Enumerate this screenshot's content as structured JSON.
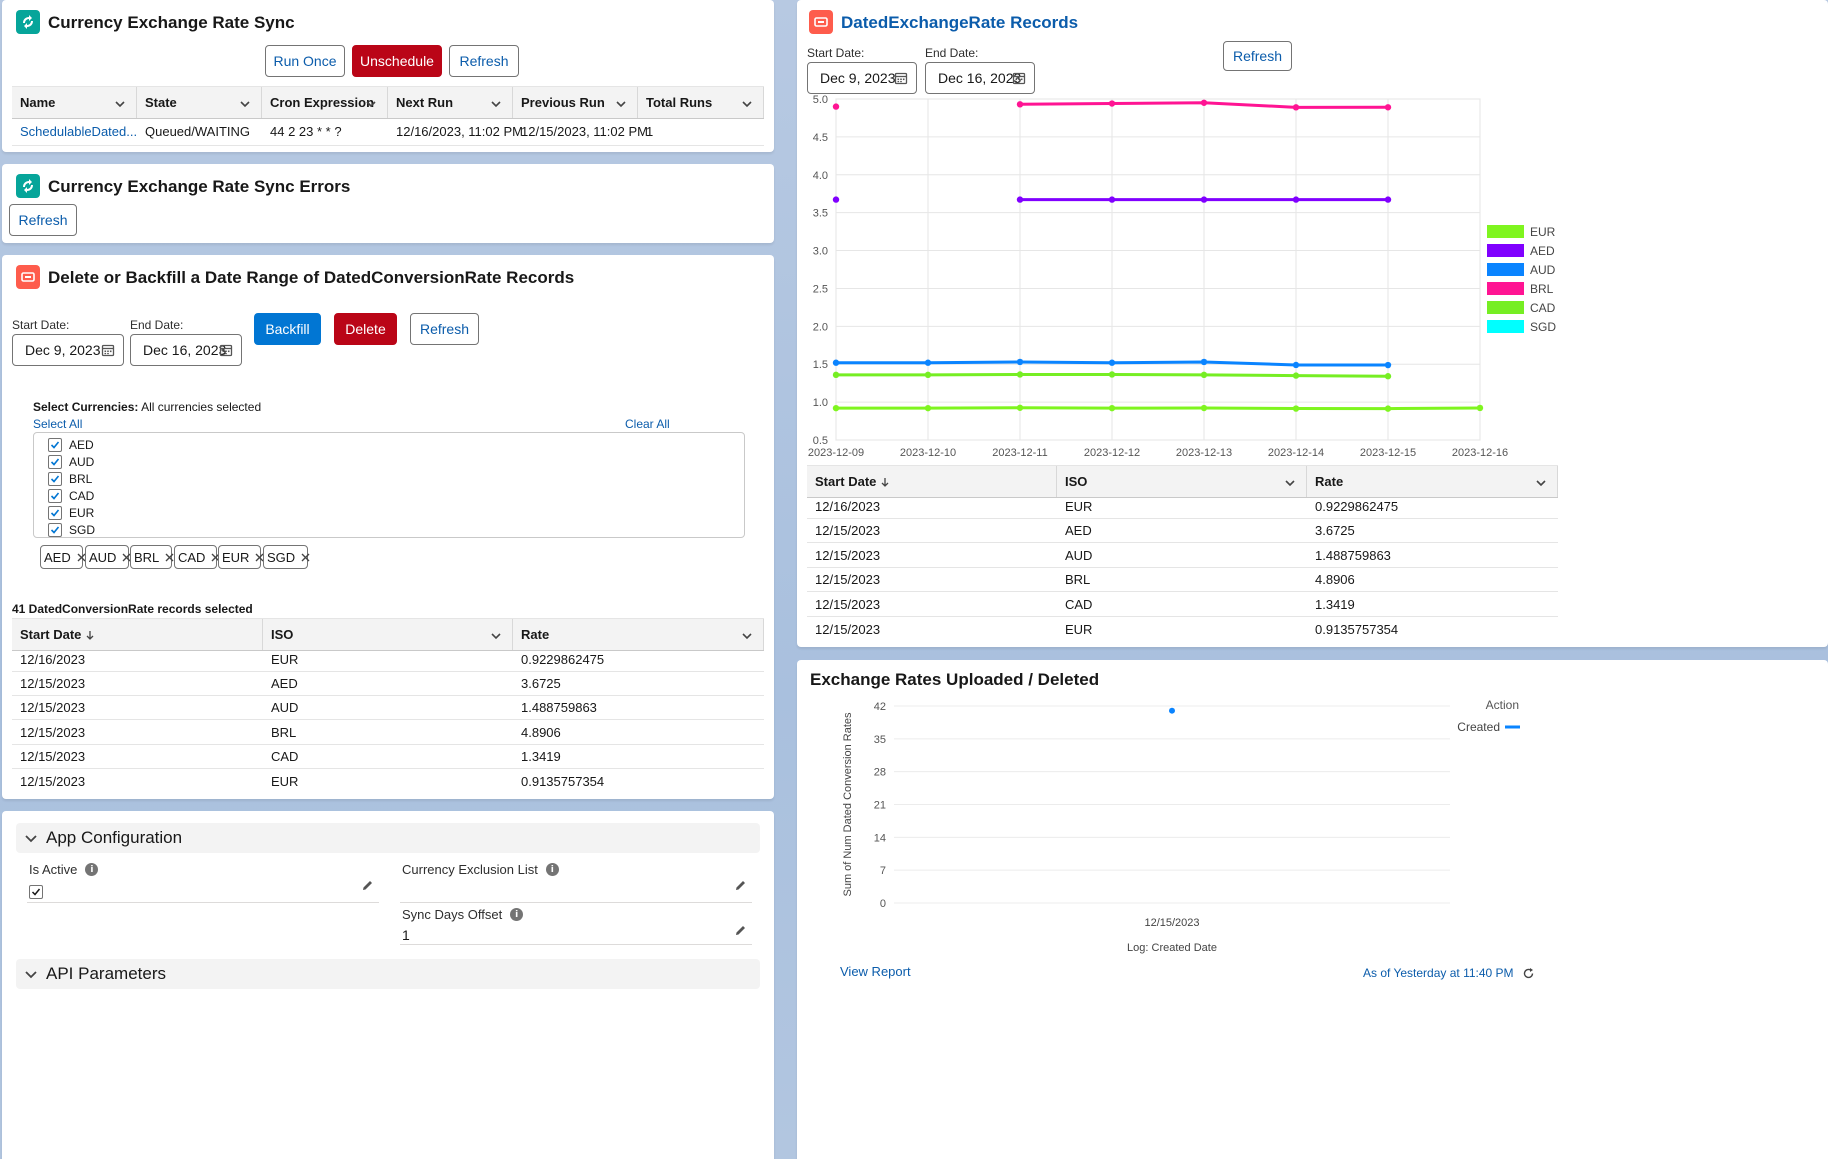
{
  "sync_card": {
    "title": "Currency Exchange Rate Sync",
    "buttons": {
      "run_once": "Run Once",
      "unschedule": "Unschedule",
      "refresh": "Refresh"
    },
    "columns": [
      "Name",
      "State",
      "Cron Expression",
      "Next Run",
      "Previous Run",
      "Total Runs"
    ],
    "rows": [
      {
        "name": "SchedulableDated...",
        "state": "Queued/WAITING",
        "cron": "44 2 23 * * ?",
        "next_run": "12/16/2023, 11:02 PM",
        "previous_run": "12/15/2023, 11:02 PM",
        "total_runs": "1"
      }
    ]
  },
  "errors_card": {
    "title": "Currency Exchange Rate Sync Errors",
    "refresh": "Refresh"
  },
  "backfill_card": {
    "title": "Delete or Backfill a Date Range of DatedConversionRate Records",
    "start_label": "Start Date:",
    "start_value": "Dec 9, 2023",
    "end_label": "End Date:",
    "end_value": "Dec 16, 2023",
    "buttons": {
      "backfill": "Backfill",
      "delete": "Delete",
      "refresh": "Refresh"
    },
    "select_label": "Select Currencies:",
    "select_status": "All currencies selected",
    "select_all": "Select All",
    "clear_all": "Clear All",
    "currencies": [
      "AED",
      "AUD",
      "BRL",
      "CAD",
      "EUR",
      "SGD"
    ],
    "pills": [
      "AED",
      "AUD",
      "BRL",
      "CAD",
      "EUR",
      "SGD"
    ],
    "records_count": "41 DatedConversionRate records selected",
    "columns": [
      "Start Date",
      "ISO",
      "Rate"
    ],
    "rows": [
      {
        "date": "12/16/2023",
        "iso": "EUR",
        "rate": "0.9229862475"
      },
      {
        "date": "12/15/2023",
        "iso": "AED",
        "rate": "3.6725"
      },
      {
        "date": "12/15/2023",
        "iso": "AUD",
        "rate": "1.488759863"
      },
      {
        "date": "12/15/2023",
        "iso": "BRL",
        "rate": "4.8906"
      },
      {
        "date": "12/15/2023",
        "iso": "CAD",
        "rate": "1.3419"
      },
      {
        "date": "12/15/2023",
        "iso": "EUR",
        "rate": "0.9135757354"
      }
    ]
  },
  "config_card": {
    "app_config_title": "App Configuration",
    "is_active_label": "Is Active",
    "is_active_checked": true,
    "exclusion_label": "Currency Exclusion List",
    "exclusion_value": "",
    "offset_label": "Sync Days Offset",
    "offset_value": "1",
    "api_title": "API Parameters"
  },
  "records_card": {
    "title": "DatedExchangeRate Records",
    "start_label": "Start Date:",
    "start_value": "Dec 9, 2023",
    "end_label": "End Date:",
    "end_value": "Dec 16, 2023",
    "refresh": "Refresh",
    "columns": [
      "Start Date",
      "ISO",
      "Rate"
    ],
    "rows": [
      {
        "date": "12/16/2023",
        "iso": "EUR",
        "rate": "0.9229862475"
      },
      {
        "date": "12/15/2023",
        "iso": "AED",
        "rate": "3.6725"
      },
      {
        "date": "12/15/2023",
        "iso": "AUD",
        "rate": "1.488759863"
      },
      {
        "date": "12/15/2023",
        "iso": "BRL",
        "rate": "4.8906"
      },
      {
        "date": "12/15/2023",
        "iso": "CAD",
        "rate": "1.3419"
      },
      {
        "date": "12/15/2023",
        "iso": "EUR",
        "rate": "0.9135757354"
      }
    ]
  },
  "report_card": {
    "title": "Exchange Rates Uploaded / Deleted",
    "view_report": "View Report",
    "as_of": "As of Yesterday at 11:40 PM"
  },
  "chart_data": [
    {
      "type": "line",
      "x": [
        "2023-12-09",
        "2023-12-10",
        "2023-12-11",
        "2023-12-12",
        "2023-12-13",
        "2023-12-14",
        "2023-12-15",
        "2023-12-16"
      ],
      "ylim": [
        0.5,
        5.0
      ],
      "yticks": [
        "0.5",
        "1.0",
        "1.5",
        "2.0",
        "2.5",
        "3.0",
        "3.5",
        "4.0",
        "4.5",
        "5.0"
      ],
      "grid": true,
      "legend_position": "right",
      "series": [
        {
          "name": "EUR",
          "color": "#7ff51f",
          "values": [
            0.92,
            0.92,
            0.925,
            0.92,
            0.922,
            0.915,
            0.914,
            0.923
          ]
        },
        {
          "name": "AED",
          "color": "#8000ff",
          "values": [
            3.6725,
            null,
            3.6725,
            3.6725,
            3.6725,
            3.6725,
            3.6725,
            null
          ]
        },
        {
          "name": "AUD",
          "color": "#0a84ff",
          "values": [
            1.52,
            1.52,
            1.53,
            1.52,
            1.53,
            1.49,
            1.489,
            null
          ]
        },
        {
          "name": "BRL",
          "color": "#ff1493",
          "values": [
            4.9,
            null,
            4.93,
            4.94,
            4.95,
            4.89,
            4.8906,
            null
          ]
        },
        {
          "name": "CAD",
          "color": "#76ee23",
          "values": [
            1.36,
            1.36,
            1.365,
            1.365,
            1.36,
            1.35,
            1.3419,
            null
          ]
        },
        {
          "name": "SGD",
          "color": "#00ffff",
          "values": [
            null,
            null,
            null,
            null,
            null,
            null,
            null,
            null
          ]
        }
      ]
    },
    {
      "type": "scatter",
      "categories": [
        "12/15/2023"
      ],
      "ylabel": "Sum of Num Dated Conversion Rates",
      "xlabel": "Log: Created Date",
      "ylim": [
        0,
        42
      ],
      "yticks": [
        "0",
        "7",
        "14",
        "21",
        "28",
        "35",
        "42"
      ],
      "legend_title": "Action",
      "legend_position": "top-right",
      "series": [
        {
          "name": "Created",
          "color": "#0a84ff",
          "values": [
            41
          ]
        }
      ]
    }
  ]
}
